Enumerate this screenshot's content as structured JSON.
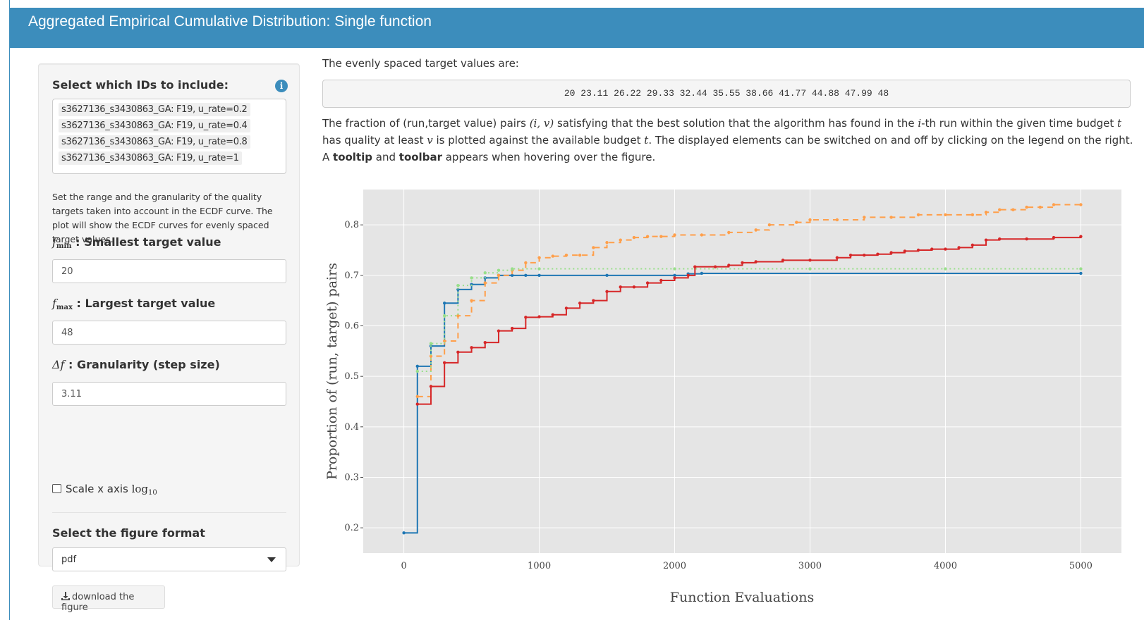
{
  "header": {
    "title": "Aggregated Empirical Cumulative Distribution: Single function"
  },
  "sidebar": {
    "ids_label": "Select which IDs to include:",
    "ids": [
      "s3627136_s3430863_GA: F19, u_rate=0.2",
      "s3627136_s3430863_GA: F19, u_rate=0.4",
      "s3627136_s3430863_GA: F19, u_rate=0.8",
      "s3627136_s3430863_GA: F19, u_rate=1"
    ],
    "help_text": "Set the range and the granularity of the quality targets taken into account in the ECDF curve. The plot will show the ECDF curves for evenly spaced target values.",
    "fmin_symbol": "f",
    "fmin_sub": "min",
    "fmin_label": " : Smallest target value",
    "fmin_value": "20",
    "fmax_symbol": "f",
    "fmax_sub": "max",
    "fmax_label": " : Largest target value",
    "fmax_value": "48",
    "df_symbol": "Δf",
    "df_label": " : Granularity (step size)",
    "df_value": "3.11",
    "scale_label": "Scale x axis ",
    "scale_log": "log",
    "scale_sub": "10",
    "format_label": "Select the figure format",
    "format_value": "pdf",
    "download_label": "download the figure"
  },
  "main": {
    "targets_intro": "The evenly spaced target values are:",
    "targets": "20 23.11 26.22 29.33 32.44 35.55 38.66 41.77 44.88 47.99 48",
    "desc_1": "The fraction of (run,target value) pairs ",
    "desc_iv": "(i, v)",
    "desc_2": " satisfying that the best solution that the algorithm has found in the ",
    "desc_i": "i",
    "desc_3": "-th run within the given time budget ",
    "desc_t": "t",
    "desc_4": " has quality at least ",
    "desc_v": "v",
    "desc_5": " is plotted against the available budget ",
    "desc_t2": "t",
    "desc_6": ". The displayed elements can be switched on and off by clicking on the legend on the right. A ",
    "desc_tooltip": "tooltip",
    "desc_and": " and ",
    "desc_toolbar": "toolbar",
    "desc_7": " appears when hovering over the figure."
  },
  "chart_data": {
    "type": "line",
    "title": "",
    "xlabel": "Function Evaluations",
    "ylabel": "Proportion of (run, target) pairs",
    "xlim": [
      -300,
      5300
    ],
    "ylim": [
      0.15,
      0.87
    ],
    "xticks": [
      0,
      1000,
      2000,
      3000,
      4000,
      5000
    ],
    "yticks": [
      0.2,
      0.3,
      0.4,
      0.5,
      0.6,
      0.7,
      0.8
    ],
    "series": [
      {
        "name": "u_rate=0.2",
        "color": "#1f77b4",
        "dash": "solid",
        "x": [
          0,
          100,
          200,
          300,
          400,
          500,
          600,
          700,
          800,
          900,
          1000,
          1500,
          2000,
          2100,
          2200,
          5000
        ],
        "y": [
          0.19,
          0.52,
          0.56,
          0.645,
          0.672,
          0.682,
          0.695,
          0.7,
          0.7,
          0.7,
          0.7,
          0.7,
          0.7,
          0.703,
          0.704,
          0.704
        ]
      },
      {
        "name": "u_rate=0.4",
        "color": "#ff9f4a",
        "dash": "dash",
        "x": [
          100,
          200,
          300,
          400,
          500,
          600,
          700,
          800,
          900,
          1000,
          1100,
          1200,
          1300,
          1400,
          1500,
          1600,
          1700,
          1800,
          1900,
          2000,
          2200,
          2400,
          2600,
          2700,
          2900,
          3000,
          3200,
          3400,
          3600,
          3800,
          4000,
          4200,
          4300,
          4400,
          4500,
          4600,
          4700,
          4800,
          5000
        ],
        "y": [
          0.46,
          0.54,
          0.57,
          0.62,
          0.65,
          0.685,
          0.7,
          0.71,
          0.725,
          0.735,
          0.738,
          0.74,
          0.74,
          0.755,
          0.765,
          0.77,
          0.775,
          0.777,
          0.777,
          0.78,
          0.78,
          0.785,
          0.79,
          0.8,
          0.805,
          0.81,
          0.81,
          0.815,
          0.815,
          0.82,
          0.82,
          0.82,
          0.825,
          0.83,
          0.83,
          0.835,
          0.835,
          0.84,
          0.84
        ]
      },
      {
        "name": "u_rate=0.8",
        "color": "#98df8a",
        "dash": "dot",
        "x": [
          100,
          200,
          300,
          400,
          500,
          600,
          700,
          800,
          1000,
          2000,
          3000,
          4000,
          5000
        ],
        "y": [
          0.51,
          0.565,
          0.62,
          0.68,
          0.695,
          0.705,
          0.71,
          0.713,
          0.713,
          0.713,
          0.713,
          0.713,
          0.713
        ]
      },
      {
        "name": "u_rate=1",
        "color": "#d62728",
        "dash": "solid",
        "x": [
          100,
          200,
          300,
          400,
          500,
          600,
          700,
          800,
          900,
          1000,
          1100,
          1200,
          1300,
          1400,
          1500,
          1600,
          1700,
          1800,
          1900,
          2000,
          2100,
          2150,
          2300,
          2400,
          2500,
          2600,
          2800,
          3000,
          3200,
          3300,
          3400,
          3500,
          3600,
          3700,
          3800,
          3900,
          4000,
          4100,
          4200,
          4300,
          4400,
          4600,
          4800,
          5000
        ],
        "y": [
          0.445,
          0.48,
          0.527,
          0.548,
          0.557,
          0.567,
          0.59,
          0.595,
          0.617,
          0.618,
          0.622,
          0.635,
          0.645,
          0.65,
          0.668,
          0.677,
          0.677,
          0.685,
          0.69,
          0.695,
          0.7,
          0.717,
          0.717,
          0.72,
          0.725,
          0.727,
          0.73,
          0.73,
          0.735,
          0.74,
          0.74,
          0.742,
          0.745,
          0.748,
          0.75,
          0.752,
          0.752,
          0.755,
          0.76,
          0.77,
          0.772,
          0.772,
          0.775,
          0.777
        ]
      }
    ]
  }
}
